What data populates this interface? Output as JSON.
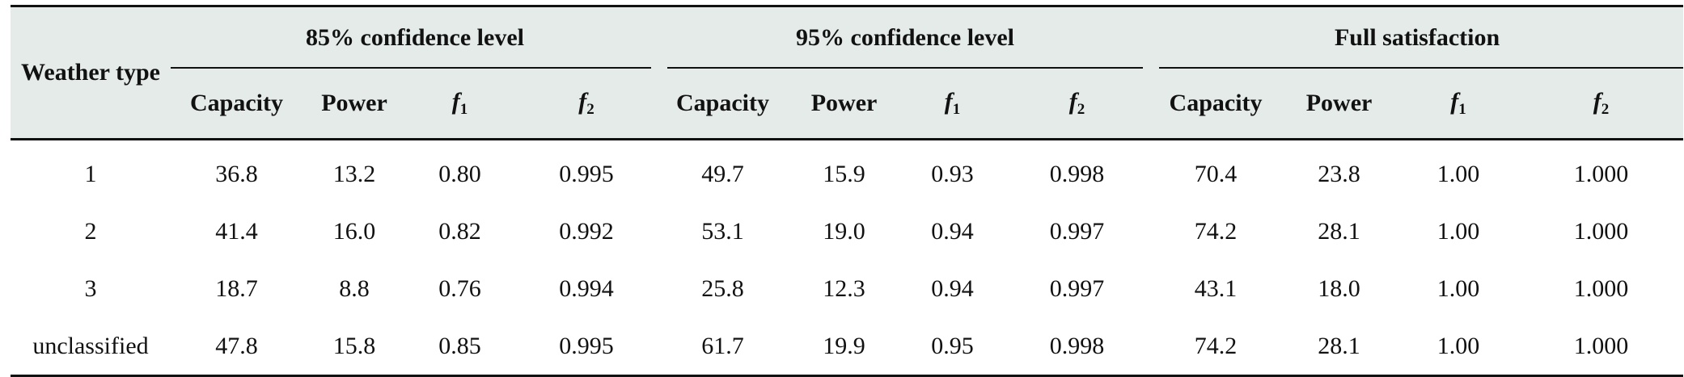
{
  "table": {
    "row_header": "Weather type",
    "groups": [
      {
        "label": "85% confidence level"
      },
      {
        "label": "95% confidence level"
      },
      {
        "label": "Full satisfaction"
      }
    ],
    "subcolumns": {
      "capacity": "Capacity",
      "power": "Power",
      "f1_letter": "f",
      "f1_sub": "1",
      "f2_letter": "f",
      "f2_sub": "2"
    },
    "rows": [
      {
        "type": "1",
        "values": [
          "36.8",
          "13.2",
          "0.80",
          "0.995",
          "49.7",
          "15.9",
          "0.93",
          "0.998",
          "70.4",
          "23.8",
          "1.00",
          "1.000"
        ]
      },
      {
        "type": "2",
        "values": [
          "41.4",
          "16.0",
          "0.82",
          "0.992",
          "53.1",
          "19.0",
          "0.94",
          "0.997",
          "74.2",
          "28.1",
          "1.00",
          "1.000"
        ]
      },
      {
        "type": "3",
        "values": [
          "18.7",
          "8.8",
          "0.76",
          "0.994",
          "25.8",
          "12.3",
          "0.94",
          "0.997",
          "43.1",
          "18.0",
          "1.00",
          "1.000"
        ]
      },
      {
        "type": "unclassified",
        "values": [
          "47.8",
          "15.8",
          "0.85",
          "0.995",
          "61.7",
          "19.9",
          "0.95",
          "0.998",
          "74.2",
          "28.1",
          "1.00",
          "1.000"
        ]
      }
    ]
  }
}
